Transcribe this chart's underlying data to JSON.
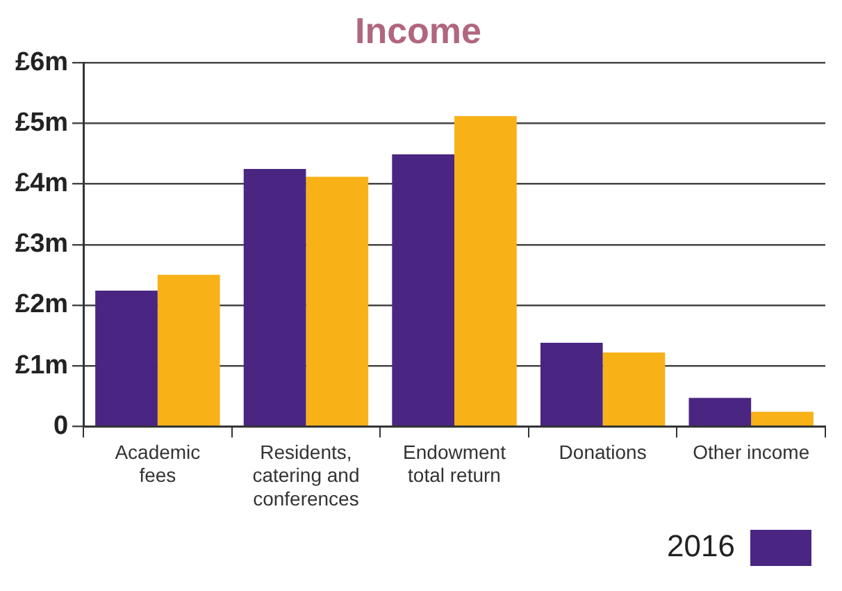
{
  "chart_data": {
    "type": "bar",
    "title": "Income",
    "categories": [
      "Academic fees",
      "Residents, catering and conferences",
      "Endowment total return",
      "Donations",
      "Other income"
    ],
    "series": [
      {
        "name": "2016",
        "color": "#4a2682",
        "values": [
          2.24,
          4.25,
          4.49,
          1.38,
          0.47
        ]
      },
      {
        "color": "#f8b116",
        "values": [
          2.5,
          4.12,
          5.12,
          1.22,
          0.24
        ]
      }
    ],
    "ylim": [
      0,
      6
    ],
    "yticks": [
      {
        "value": 0,
        "label": "0"
      },
      {
        "value": 1,
        "label": "£1m"
      },
      {
        "value": 2,
        "label": "£2m"
      },
      {
        "value": 3,
        "label": "£3m"
      },
      {
        "value": 4,
        "label": "£4m"
      },
      {
        "value": 5,
        "label": "£5m"
      },
      {
        "value": 6,
        "label": "£6m"
      }
    ],
    "grid": "y",
    "legend": "bottom right"
  }
}
